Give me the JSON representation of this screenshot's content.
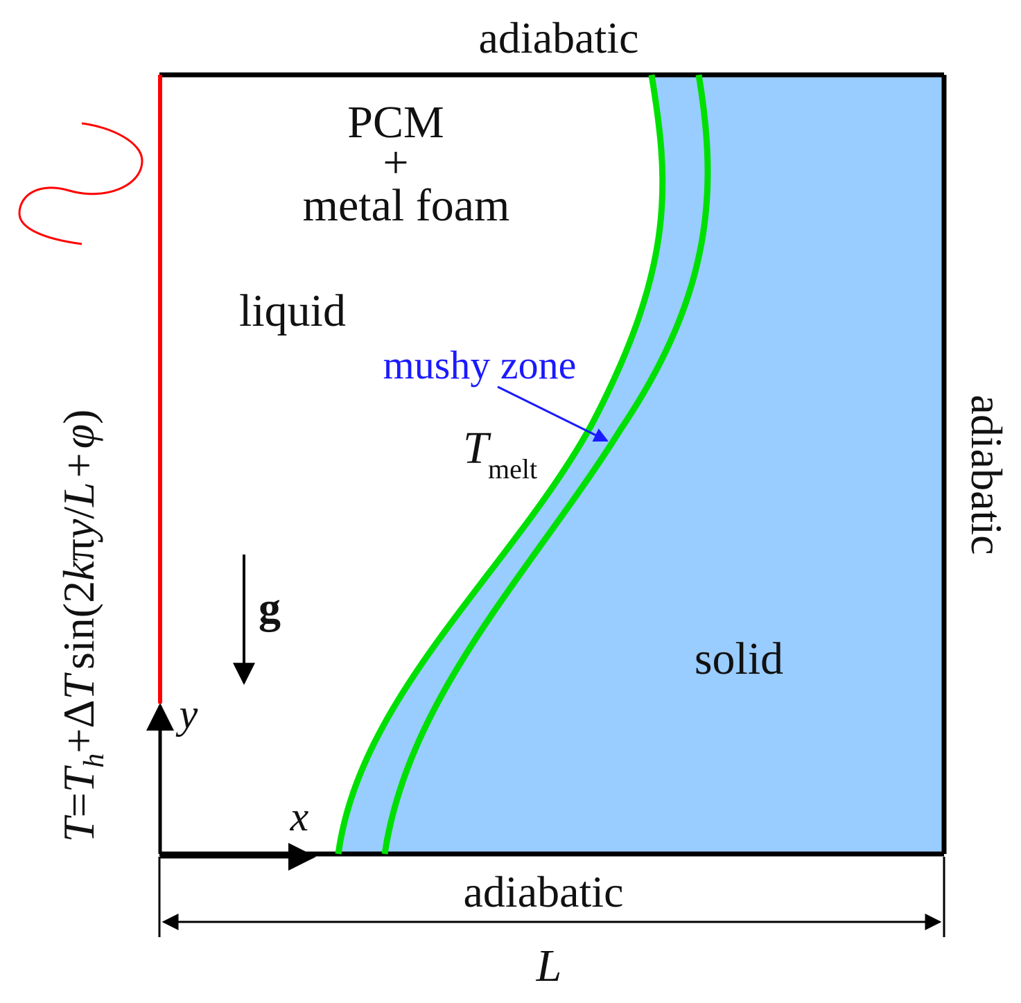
{
  "labels": {
    "top": "adiabatic",
    "bottom": "adiabatic",
    "right": "adiabatic",
    "pcm": "PCM",
    "plus": "+",
    "metal_foam": "metal foam",
    "liquid": "liquid",
    "solid": "solid",
    "mushy_zone": "mushy zone",
    "t_melt_main": "T",
    "t_melt_sub": "melt",
    "gravity": "g",
    "x_axis": "x",
    "y_axis": "y",
    "length": "L"
  },
  "boundary_condition": {
    "T1": "T",
    "eq": "=",
    "T2": "T",
    "h_sub": "h",
    "plus1": "+",
    "delta": "Δ",
    "T3": "T",
    "sin": "sin",
    "lparen": "(",
    "two": "2",
    "k": "k",
    "pi": "π",
    "y": "y",
    "slash": "/",
    "L": "L",
    "plus2": "+",
    "phi": "φ",
    "rparen": ")"
  },
  "colors": {
    "hot_wall": "#ff0000",
    "interface": "#00e000",
    "solid_fill": "#99ccff",
    "mushy_label": "#1a1aff",
    "frame": "#000000"
  }
}
